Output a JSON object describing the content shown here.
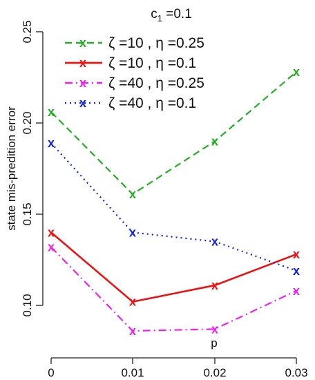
{
  "chart_data": {
    "type": "line",
    "title_main": "c",
    "title_sub": "1",
    "title_rest": " =0.1",
    "xlabel": "p",
    "ylabel": "state mis-predition error",
    "x": [
      0,
      0.01,
      0.02,
      0.03
    ],
    "x_tick_labels": [
      "0",
      "0.01",
      "0.02",
      "0.03"
    ],
    "y_ticks": [
      0.1,
      0.15,
      0.2,
      0.25
    ],
    "y_tick_labels": [
      "0.10",
      "0.15",
      "0.20",
      "0.25"
    ],
    "ylim": [
      0.1,
      0.25
    ],
    "grid": false,
    "legend_position": "top",
    "series": [
      {
        "name": "ζ =10 , η =0.25",
        "color": "#22b022",
        "dash": "dashed",
        "values": [
          0.206,
          0.161,
          0.19,
          0.228
        ]
      },
      {
        "name": "ζ =10 , η =0.1",
        "color": "#ee1111",
        "dash": "solid",
        "values": [
          0.14,
          0.102,
          0.111,
          0.128
        ]
      },
      {
        "name": "ζ =40 , η =0.25",
        "color": "#ee22ee",
        "dash": "dashdot",
        "values": [
          0.132,
          0.086,
          0.087,
          0.108
        ]
      },
      {
        "name": "ζ =40 , η =0.1",
        "color": "#1122dd",
        "dash": "dotted",
        "values": [
          0.189,
          0.14,
          0.135,
          0.119
        ]
      }
    ]
  }
}
